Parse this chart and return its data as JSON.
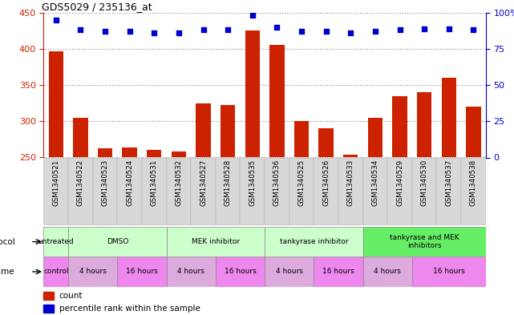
{
  "title": "GDS5029 / 235136_at",
  "samples": [
    "GSM1340521",
    "GSM1340522",
    "GSM1340523",
    "GSM1340524",
    "GSM1340531",
    "GSM1340532",
    "GSM1340527",
    "GSM1340528",
    "GSM1340535",
    "GSM1340536",
    "GSM1340525",
    "GSM1340526",
    "GSM1340533",
    "GSM1340534",
    "GSM1340529",
    "GSM1340530",
    "GSM1340537",
    "GSM1340538"
  ],
  "counts": [
    397,
    305,
    263,
    264,
    261,
    258,
    325,
    323,
    425,
    405,
    300,
    290,
    254,
    305,
    335,
    340,
    360,
    320
  ],
  "percentile_ranks": [
    95,
    88,
    87,
    87,
    86,
    86,
    88,
    88,
    98,
    90,
    87,
    87,
    86,
    87,
    88,
    89,
    89,
    88
  ],
  "ylim_left": [
    250,
    450
  ],
  "ylim_right": [
    0,
    100
  ],
  "yticks_left": [
    250,
    300,
    350,
    400,
    450
  ],
  "yticks_right": [
    0,
    25,
    50,
    75,
    100
  ],
  "bar_color": "#cc2200",
  "dot_color": "#0000cc",
  "left_axis_color": "#cc2200",
  "right_axis_color": "#0000cc",
  "protocol_groups": [
    {
      "label": "untreated",
      "start": 0,
      "end": 1,
      "color": "#ccffcc"
    },
    {
      "label": "DMSO",
      "start": 1,
      "end": 5,
      "color": "#ccffcc"
    },
    {
      "label": "MEK inhibitor",
      "start": 5,
      "end": 9,
      "color": "#ccffcc"
    },
    {
      "label": "tankyrase inhibitor",
      "start": 9,
      "end": 13,
      "color": "#ccffcc"
    },
    {
      "label": "tankyrase and MEK\ninhibitors",
      "start": 13,
      "end": 18,
      "color": "#66ee66"
    }
  ],
  "time_groups": [
    {
      "label": "control",
      "start": 0,
      "end": 1,
      "color": "#ee88ee"
    },
    {
      "label": "4 hours",
      "start": 1,
      "end": 3,
      "color": "#ddaadd"
    },
    {
      "label": "16 hours",
      "start": 3,
      "end": 5,
      "color": "#ee88ee"
    },
    {
      "label": "4 hours",
      "start": 5,
      "end": 7,
      "color": "#ddaadd"
    },
    {
      "label": "16 hours",
      "start": 7,
      "end": 9,
      "color": "#ee88ee"
    },
    {
      "label": "4 hours",
      "start": 9,
      "end": 11,
      "color": "#ddaadd"
    },
    {
      "label": "16 hours",
      "start": 11,
      "end": 13,
      "color": "#ee88ee"
    },
    {
      "label": "4 hours",
      "start": 13,
      "end": 15,
      "color": "#ddaadd"
    },
    {
      "label": "16 hours",
      "start": 15,
      "end": 18,
      "color": "#ee88ee"
    }
  ]
}
